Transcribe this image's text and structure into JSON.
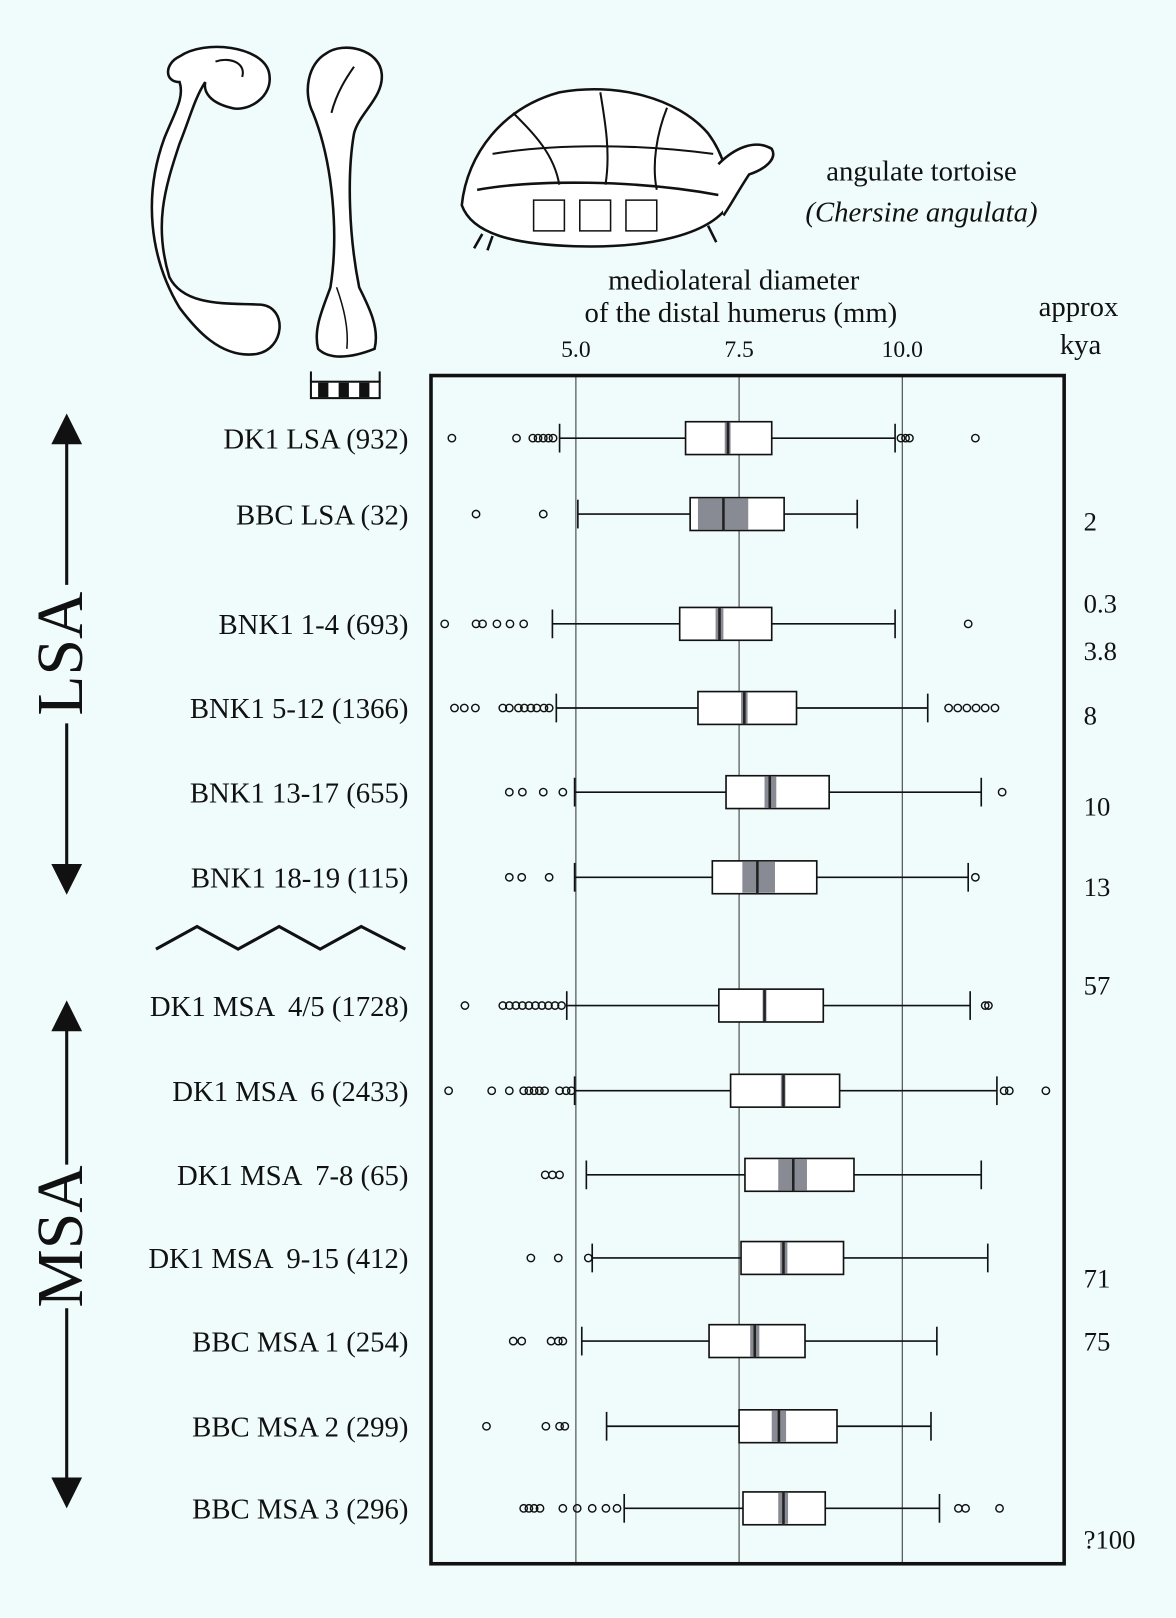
{
  "chart_data": {
    "type": "boxplot",
    "title_lines": [
      "mediolateral diameter",
      "of the distal humerus (mm)"
    ],
    "caption_lines": [
      "angulate tortoise",
      "(Chersine angulata)"
    ],
    "right_axis_title_lines": [
      "approx",
      "kya"
    ],
    "right_labels": [
      "2",
      "0.3",
      "3.8",
      "8",
      "10",
      "13",
      "57",
      "71",
      "75",
      "?100"
    ],
    "periods": [
      "LSA",
      "MSA"
    ],
    "xlim": [
      2.78,
      12.48
    ],
    "xticks": [
      {
        "value": 5,
        "label": "5.0"
      },
      {
        "value": 7.5,
        "label": "7.5"
      },
      {
        "value": 10,
        "label": "10.0"
      }
    ],
    "grid": true,
    "box_color": "#ffffff",
    "ci_color": "#888a94",
    "categories": [
      "DK1 LSA (932)",
      "BBC LSA (32)",
      "BNK1 1-4 (693)",
      "BNK1 5-12 (1366)",
      "BNK1 13-17 (655)",
      "BNK1 18-19 (115)",
      "DK1 MSA  4/5 (1728)",
      "DK1 MSA  6 (2433)",
      "DK1 MSA  7-8 (65)",
      "DK1 MSA  9-15 (412)",
      "BBC MSA 1 (254)",
      "BBC MSA 2 (299)",
      "BBC MSA 3 (296)"
    ],
    "boxes": [
      {
        "whisker_low": 4.75,
        "q1": 6.68,
        "median": 7.33,
        "q3": 8.0,
        "whisker_high": 9.89,
        "ci_low": 7.28,
        "ci_high": 7.37,
        "outliers": [
          3.1,
          4.09,
          4.34,
          4.42,
          4.5,
          4.58,
          4.65,
          9.98,
          10.05,
          10.11,
          11.12
        ]
      },
      {
        "whisker_low": 5.03,
        "q1": 6.75,
        "median": 7.26,
        "q3": 8.19,
        "whisker_high": 9.31,
        "ci_low": 6.87,
        "ci_high": 7.64,
        "outliers": [
          3.47,
          4.5
        ]
      },
      {
        "whisker_low": 4.64,
        "q1": 6.59,
        "median": 7.2,
        "q3": 8.0,
        "whisker_high": 9.89,
        "ci_low": 7.14,
        "ci_high": 7.26,
        "outliers": [
          2.99,
          3.47,
          3.57,
          3.79,
          3.99,
          4.2,
          11.01
        ]
      },
      {
        "whisker_low": 4.7,
        "q1": 6.87,
        "median": 7.58,
        "q3": 8.38,
        "whisker_high": 10.39,
        "ci_low": 7.53,
        "ci_high": 7.63,
        "outliers": [
          3.14,
          3.29,
          3.46,
          3.88,
          3.98,
          4.12,
          4.21,
          4.31,
          4.4,
          4.51,
          4.59,
          10.71,
          10.85,
          10.99,
          11.13,
          11.27,
          11.42
        ]
      },
      {
        "whisker_low": 4.98,
        "q1": 7.3,
        "median": 7.97,
        "q3": 8.88,
        "whisker_high": 11.21,
        "ci_low": 7.89,
        "ci_high": 8.07,
        "outliers": [
          3.98,
          4.18,
          4.5,
          4.8,
          11.53
        ]
      },
      {
        "whisker_low": 4.98,
        "q1": 7.09,
        "median": 7.78,
        "q3": 8.69,
        "whisker_high": 11.01,
        "ci_low": 7.55,
        "ci_high": 8.05,
        "outliers": [
          3.98,
          4.17,
          4.59,
          11.12
        ]
      },
      {
        "whisker_low": 4.86,
        "q1": 7.19,
        "median": 7.89,
        "q3": 8.79,
        "whisker_high": 11.04,
        "ci_low": 7.86,
        "ci_high": 7.92,
        "outliers": [
          3.3,
          3.88,
          3.98,
          4.08,
          4.18,
          4.28,
          4.38,
          4.48,
          4.58,
          4.68,
          4.78,
          11.27,
          11.32
        ]
      },
      {
        "whisker_low": 4.98,
        "q1": 7.37,
        "median": 8.18,
        "q3": 9.04,
        "whisker_high": 11.45,
        "ci_low": 8.14,
        "ci_high": 8.21,
        "outliers": [
          3.05,
          3.71,
          3.98,
          4.2,
          4.28,
          4.36,
          4.44,
          4.52,
          4.75,
          4.85,
          4.93,
          11.56,
          11.64,
          12.2
        ]
      },
      {
        "whisker_low": 5.16,
        "q1": 7.59,
        "median": 8.33,
        "q3": 9.26,
        "whisker_high": 11.21,
        "ci_low": 8.1,
        "ci_high": 8.54,
        "outliers": [
          4.53,
          4.64,
          4.75
        ]
      },
      {
        "whisker_low": 5.25,
        "q1": 7.53,
        "median": 8.18,
        "q3": 9.1,
        "whisker_high": 11.31,
        "ci_low": 8.13,
        "ci_high": 8.24,
        "outliers": [
          4.31,
          4.73,
          5.19
        ]
      },
      {
        "whisker_low": 5.09,
        "q1": 7.04,
        "median": 7.74,
        "q3": 8.51,
        "whisker_high": 10.53,
        "ci_low": 7.67,
        "ci_high": 7.81,
        "outliers": [
          4.04,
          4.17,
          4.62,
          4.73,
          4.8
        ]
      },
      {
        "whisker_low": 5.47,
        "q1": 7.5,
        "median": 8.11,
        "q3": 9.0,
        "whisker_high": 10.44,
        "ci_low": 8.0,
        "ci_high": 8.22,
        "outliers": [
          3.63,
          4.54,
          4.75,
          4.83
        ]
      },
      {
        "whisker_low": 5.74,
        "q1": 7.56,
        "median": 8.18,
        "q3": 8.82,
        "whisker_high": 10.57,
        "ci_low": 8.1,
        "ci_high": 8.25,
        "outliers": [
          4.2,
          4.28,
          4.36,
          4.45,
          4.8,
          5.02,
          5.25,
          5.46,
          5.63,
          10.86,
          10.97,
          11.49
        ]
      }
    ]
  }
}
